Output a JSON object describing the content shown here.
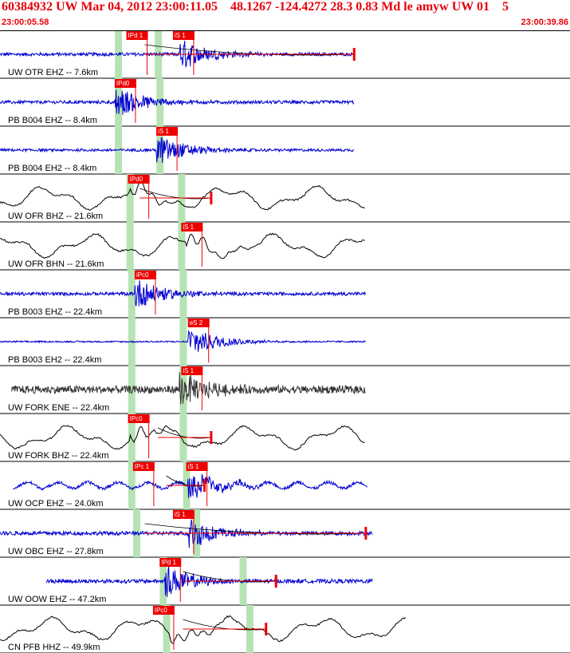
{
  "header": {
    "title": "60384932 UW Mar 04, 2012 23:00:11.05    48.1267 -124.4272 28.3 0.83 Md le amyw UW 01    5",
    "start_time": "23:00:05.58",
    "end_time": "23:00:39.86"
  },
  "colors": {
    "title": "#e8000b",
    "pick_box": "#ee0000",
    "window_band": "#b7e3b4",
    "trace_blue": "#0000d0",
    "trace_black": "#000000",
    "trace_gray": "#333333"
  },
  "chart_data": {
    "type": "line",
    "title": "",
    "xlabel": "",
    "ylabel": "",
    "xlim": [
      0,
      34.28
    ],
    "traces": [
      {
        "name": "UW OTR EHZ -- 7.6km",
        "color": "blue",
        "kind": "hf",
        "start": 0.0,
        "end": 21.3,
        "amp": 0.25,
        "pick": {
          "label": "IPd 1",
          "t": 7.6
        },
        "pick2": {
          "label": "iS 1",
          "t": 10.4
        },
        "onset": 10.8,
        "windows": [
          7.1,
          9.5
        ],
        "coda": [
          8.7,
          21.3
        ]
      },
      {
        "name": "PB B004 EHZ -- 8.4km",
        "color": "blue",
        "kind": "hf",
        "start": 0.0,
        "end": 21.3,
        "amp": 0.25,
        "pick": {
          "label": "IPd0",
          "t": 6.9
        },
        "onset": 6.9,
        "windows": [
          7.1,
          9.6
        ]
      },
      {
        "name": "PB B004 EH2 -- 8.4km",
        "color": "blue",
        "kind": "hf",
        "start": 0.0,
        "end": 21.3,
        "amp": 0.2,
        "pick": {
          "label": "iS 1",
          "t": 9.4
        },
        "onset": 9.4,
        "windows": [
          7.1,
          9.6
        ]
      },
      {
        "name": "UW OFR BHZ -- 21.6km",
        "color": "black",
        "kind": "lf",
        "start": 0.0,
        "end": 22.0,
        "amp": 0.7,
        "pick": {
          "label": "IPd0",
          "t": 7.7
        },
        "onset": 7.8,
        "windows": [
          7.8,
          10.9
        ],
        "coda": [
          8.4,
          12.7
        ]
      },
      {
        "name": "UW OFR BHN -- 21.6km",
        "color": "black",
        "kind": "lf",
        "start": 0.0,
        "end": 22.0,
        "amp": 0.7,
        "pick": {
          "label": "iS 1",
          "t": 10.9
        },
        "onset": 11.2,
        "windows": [
          7.8,
          10.9
        ]
      },
      {
        "name": "PB B003 EHZ -- 22.4km",
        "color": "blue",
        "kind": "hf",
        "start": 0.0,
        "end": 22.0,
        "amp": 0.25,
        "pick": {
          "label": "iPc0",
          "t": 8.1
        },
        "onset": 8.1,
        "windows": [
          7.9,
          11.0
        ]
      },
      {
        "name": "PB B003 EH2 -- 22.4km",
        "color": "blue",
        "kind": "hf",
        "start": 0.0,
        "end": 22.0,
        "amp": 0.12,
        "pick": {
          "label": "eS 2",
          "t": 11.3
        },
        "onset": 11.3,
        "windows": [
          7.9,
          11.0
        ]
      },
      {
        "name": "UW FORK ENE -- 22.4km",
        "color": "gray",
        "kind": "hf",
        "start": 0.7,
        "end": 22.0,
        "amp": 0.6,
        "pick": {
          "label": "iS 1",
          "t": 10.9
        },
        "onset": 10.8,
        "windows": [
          7.9,
          11.0
        ]
      },
      {
        "name": "UW FORK BHZ -- 22.4km",
        "color": "black",
        "kind": "lf",
        "start": 0.0,
        "end": 22.0,
        "amp": 0.7,
        "pick": {
          "label": "IPc0",
          "t": 7.7
        },
        "onset": 7.8,
        "windows": [
          7.9,
          11.0
        ],
        "coda": [
          9.5,
          12.7
        ]
      },
      {
        "name": "UW OCP EHZ -- 24.0km",
        "color": "blue",
        "kind": "mix",
        "start": 0.8,
        "end": 22.1,
        "amp": 0.4,
        "pick": {
          "label": "IPc 1",
          "t": 8.0
        },
        "pick2": {
          "label": "iS 1",
          "t": 11.2
        },
        "onset": 11.3,
        "windows": [
          7.9,
          11.2
        ],
        "coda": [
          10.0,
          12.3
        ]
      },
      {
        "name": "UW OBC EHZ -- 27.8km",
        "color": "blue",
        "kind": "hf",
        "start": 0.0,
        "end": 22.4,
        "amp": 0.3,
        "pick": {
          "label": "iS 1",
          "t": 10.4
        },
        "onset": 11.3,
        "windows": [
          8.2,
          11.8
        ],
        "coda": [
          8.7,
          22.0
        ]
      },
      {
        "name": "UW OOW EHZ -- 47.2km",
        "color": "blue",
        "kind": "hf",
        "start": 2.8,
        "end": 22.4,
        "amp": 0.3,
        "pick": {
          "label": "IPd 1",
          "t": 9.6
        },
        "onset": 9.9,
        "windows": [
          9.8,
          14.6
        ],
        "coda": [
          11.0,
          16.6
        ]
      },
      {
        "name": "CN PFB HHZ -- 49.9km",
        "color": "black",
        "kind": "lf",
        "start": 0.0,
        "end": 24.4,
        "amp": 0.7,
        "pick": {
          "label": "IPc0",
          "t": 9.2
        },
        "onset": 10.2,
        "windows": [
          10.0,
          15.0
        ],
        "coda": [
          11.0,
          16.0
        ]
      }
    ]
  }
}
